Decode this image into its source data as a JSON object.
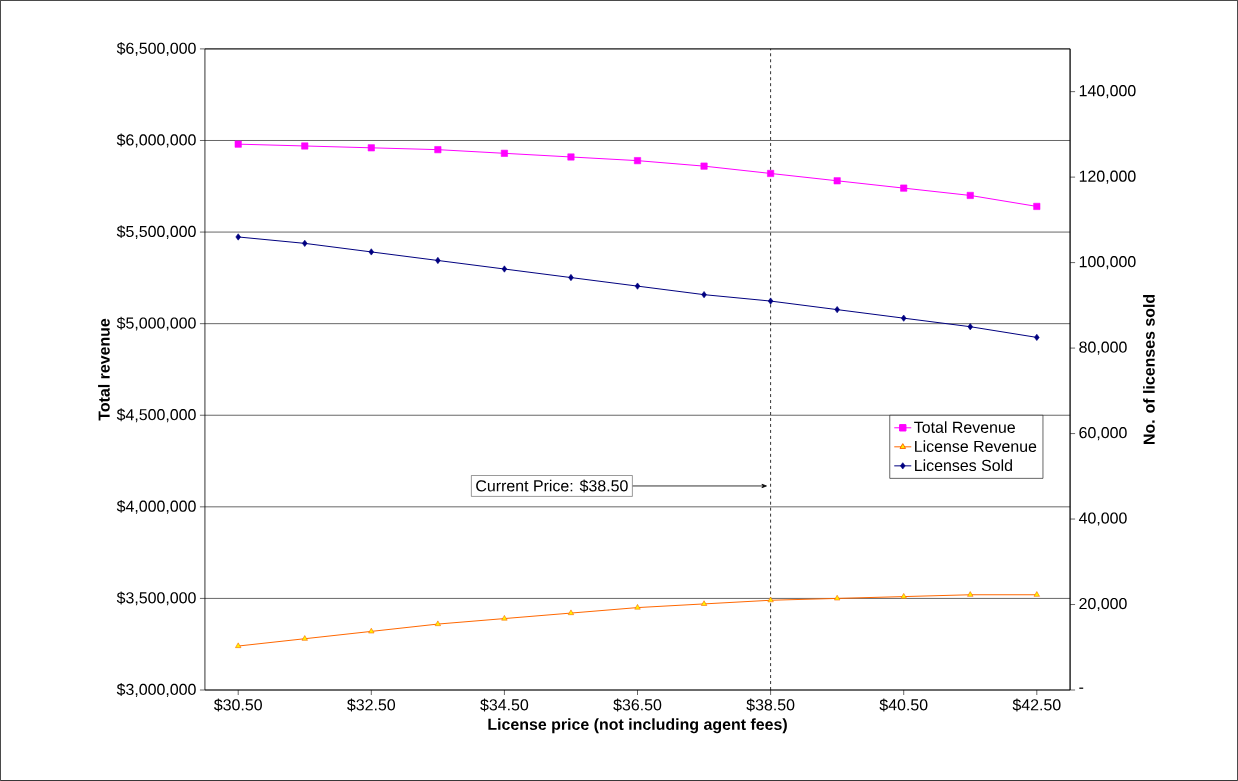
{
  "chart_data": {
    "type": "line",
    "xlabel": "License price (not including agent fees)",
    "ylabel": "Total revenue",
    "y2label": "No. of licenses sold",
    "x": [
      30.5,
      31.5,
      32.5,
      33.5,
      34.5,
      35.5,
      36.5,
      37.5,
      38.5,
      39.5,
      40.5,
      41.5,
      42.5
    ],
    "xlim": [
      30,
      43
    ],
    "xticks": [
      {
        "value": 30.5,
        "label": "$30.50"
      },
      {
        "value": 32.5,
        "label": "$32.50"
      },
      {
        "value": 34.5,
        "label": "$34.50"
      },
      {
        "value": 36.5,
        "label": "$36.50"
      },
      {
        "value": 38.5,
        "label": "$38.50"
      },
      {
        "value": 40.5,
        "label": "$40.50"
      },
      {
        "value": 42.5,
        "label": "$42.50"
      }
    ],
    "ylim": [
      3000000,
      6500000
    ],
    "yticks": [
      {
        "value": 3000000,
        "label": "$3,000,000"
      },
      {
        "value": 3500000,
        "label": "$3,500,000"
      },
      {
        "value": 4000000,
        "label": "$4,000,000"
      },
      {
        "value": 4500000,
        "label": "$4,500,000"
      },
      {
        "value": 5000000,
        "label": "$5,000,000"
      },
      {
        "value": 5500000,
        "label": "$5,500,000"
      },
      {
        "value": 6000000,
        "label": "$6,000,000"
      },
      {
        "value": 6500000,
        "label": "$6,500,000"
      }
    ],
    "y2lim": [
      0,
      150000
    ],
    "y2ticks": [
      {
        "value": 0,
        "label": "-"
      },
      {
        "value": 20000,
        "label": "20,000"
      },
      {
        "value": 40000,
        "label": "40,000"
      },
      {
        "value": 60000,
        "label": "60,000"
      },
      {
        "value": 80000,
        "label": "80,000"
      },
      {
        "value": 100000,
        "label": "100,000"
      },
      {
        "value": 120000,
        "label": "120,000"
      },
      {
        "value": 140000,
        "label": "140,000"
      }
    ],
    "grid": "y",
    "legend": "right",
    "series": [
      {
        "name": "Total Revenue",
        "color": "#ff00ff",
        "marker": "square",
        "values": [
          5980000,
          5970000,
          5960000,
          5950000,
          5930000,
          5910000,
          5890000,
          5860000,
          5820000,
          5780000,
          5740000,
          5700000,
          5640000
        ]
      },
      {
        "name": "License Revenue",
        "color": "#ff6600",
        "marker": "triangle",
        "values": [
          3240000,
          3280000,
          3320000,
          3360000,
          3390000,
          3420000,
          3450000,
          3470000,
          3490000,
          3500000,
          3510000,
          3520000,
          3520000
        ]
      },
      {
        "name": "Licenses Sold",
        "color": "#000080",
        "marker": "diamond",
        "axis": "y2",
        "values": [
          106000,
          104500,
          102500,
          100500,
          98500,
          96500,
          94500,
          92500,
          91000,
          89000,
          87000,
          85000,
          82500
        ]
      }
    ],
    "ref_lines": [
      {
        "axis": "x",
        "value": 38.5,
        "line_style": "dashed",
        "color": "#000000"
      }
    ],
    "annotations": [
      {
        "text": "Current Price: $38.50",
        "x": 38.5,
        "y": 4114000
      }
    ]
  }
}
